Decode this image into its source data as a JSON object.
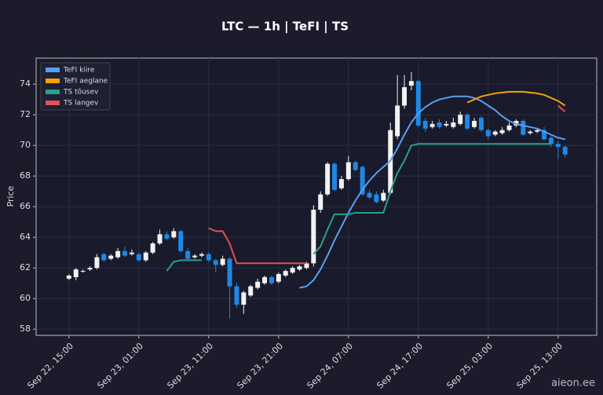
{
  "chart_data": {
    "type": "candlestick",
    "title": "LTC — 1h  |  TeFI  |  TS",
    "y_label": "Price",
    "watermark": "aieon.ee",
    "categories": [
      "Sep 22, 15:00",
      null,
      null,
      null,
      null,
      null,
      null,
      null,
      null,
      null,
      "Sep 23, 01:00",
      null,
      null,
      null,
      null,
      null,
      null,
      null,
      null,
      null,
      "Sep 23, 11:00",
      null,
      null,
      null,
      null,
      null,
      null,
      null,
      null,
      null,
      "Sep 23, 21:00",
      null,
      null,
      null,
      null,
      null,
      null,
      null,
      null,
      null,
      "Sep 24, 07:00",
      null,
      null,
      null,
      null,
      null,
      null,
      null,
      null,
      null,
      "Sep 24, 17:00",
      null,
      null,
      null,
      null,
      null,
      null,
      null,
      null,
      null,
      "Sep 25, 03:00",
      null,
      null,
      null,
      null,
      null,
      null,
      null,
      null,
      null,
      "Sep 25, 13:00",
      null
    ],
    "open": [
      61.3,
      61.4,
      61.8,
      61.9,
      62.0,
      62.9,
      62.6,
      62.7,
      63.1,
      62.9,
      62.9,
      62.5,
      63.0,
      63.6,
      64.2,
      64.0,
      64.4,
      63.1,
      62.7,
      62.8,
      62.9,
      62.5,
      62.2,
      62.6,
      60.8,
      59.6,
      60.2,
      60.7,
      61.0,
      61.4,
      61.1,
      61.5,
      61.7,
      61.9,
      62.0,
      62.3,
      65.8,
      66.8,
      68.8,
      67.2,
      67.8,
      68.9,
      68.6,
      66.9,
      66.8,
      66.4,
      66.9,
      70.6,
      72.6,
      73.9,
      74.2,
      71.6,
      71.2,
      71.5,
      71.3,
      71.2,
      71.4,
      72.0,
      71.2,
      71.8,
      71.0,
      70.7,
      70.8,
      71.0,
      71.3,
      71.6,
      70.8,
      70.9,
      71.0,
      70.5,
      70.1,
      69.9
    ],
    "high": [
      61.6,
      62.0,
      61.9,
      62.1,
      62.9,
      63.0,
      62.9,
      63.3,
      63.4,
      63.2,
      63.0,
      63.1,
      63.7,
      64.5,
      64.4,
      64.6,
      64.5,
      63.3,
      62.9,
      63.0,
      63.0,
      62.6,
      62.8,
      62.7,
      61.0,
      60.5,
      60.9,
      61.3,
      61.5,
      61.5,
      61.7,
      61.9,
      62.1,
      62.2,
      62.4,
      66.1,
      67.0,
      68.9,
      68.9,
      68.0,
      69.3,
      69.0,
      68.7,
      67.1,
      67.0,
      67.1,
      71.5,
      74.6,
      74.6,
      74.8,
      74.3,
      71.8,
      71.6,
      71.7,
      71.6,
      71.8,
      72.2,
      72.1,
      71.8,
      71.9,
      71.1,
      71.0,
      71.2,
      71.5,
      71.7,
      71.7,
      71.0,
      71.1,
      71.2,
      70.6,
      70.3,
      70.0
    ],
    "low": [
      61.2,
      61.2,
      61.7,
      61.8,
      61.9,
      62.4,
      62.5,
      62.6,
      62.7,
      62.8,
      62.4,
      62.4,
      62.9,
      63.5,
      63.8,
      63.9,
      63.0,
      62.5,
      62.6,
      62.7,
      62.4,
      61.7,
      62.1,
      58.7,
      59.4,
      59.0,
      60.1,
      60.6,
      60.9,
      60.9,
      61.0,
      61.4,
      61.6,
      61.8,
      61.9,
      62.1,
      65.6,
      66.7,
      67.0,
      67.1,
      67.7,
      68.3,
      66.7,
      66.5,
      66.2,
      66.3,
      66.8,
      70.4,
      72.4,
      73.6,
      71.2,
      70.9,
      71.1,
      71.1,
      71.2,
      71.1,
      71.3,
      71.0,
      71.1,
      70.9,
      70.4,
      70.6,
      70.7,
      70.9,
      71.2,
      70.6,
      70.7,
      70.8,
      70.3,
      69.9,
      69.1,
      69.2
    ],
    "close": [
      61.5,
      61.9,
      61.8,
      62.0,
      62.7,
      62.5,
      62.8,
      63.1,
      62.8,
      63.0,
      62.5,
      63.0,
      63.6,
      64.2,
      63.9,
      64.4,
      63.1,
      62.6,
      62.8,
      62.9,
      62.5,
      62.2,
      62.6,
      60.8,
      59.6,
      60.4,
      60.8,
      61.1,
      61.4,
      61.0,
      61.6,
      61.8,
      62.0,
      62.1,
      62.3,
      65.8,
      66.8,
      68.8,
      67.1,
      67.8,
      68.9,
      68.4,
      66.8,
      66.6,
      66.3,
      66.9,
      71.0,
      72.6,
      73.8,
      74.2,
      71.3,
      71.1,
      71.4,
      71.2,
      71.4,
      71.5,
      72.0,
      71.1,
      71.6,
      71.0,
      70.6,
      70.9,
      71.0,
      71.3,
      71.6,
      70.7,
      70.9,
      71.0,
      70.4,
      70.1,
      69.9,
      69.4
    ],
    "up_color": "#f2f2f2",
    "down_color": "#1e88e5",
    "series": [
      {
        "name": "TeFI kiire",
        "color": "#5b9ff0",
        "values": [
          null,
          null,
          null,
          null,
          null,
          null,
          null,
          null,
          null,
          null,
          null,
          null,
          null,
          null,
          null,
          null,
          null,
          null,
          null,
          null,
          null,
          null,
          null,
          null,
          null,
          null,
          null,
          null,
          null,
          null,
          null,
          null,
          null,
          60.7,
          60.8,
          61.2,
          61.9,
          62.8,
          63.8,
          64.7,
          65.6,
          66.4,
          67.1,
          67.7,
          68.2,
          68.6,
          69.0,
          69.8,
          70.7,
          71.5,
          72.1,
          72.5,
          72.8,
          73.0,
          73.1,
          73.2,
          73.2,
          73.2,
          73.1,
          72.9,
          72.6,
          72.3,
          71.9,
          71.6,
          71.4,
          71.3,
          71.2,
          71.1,
          70.9,
          70.7,
          70.5,
          70.4
        ]
      },
      {
        "name": "TeFI aeglane",
        "color": "#f0a30a",
        "values": [
          null,
          null,
          null,
          null,
          null,
          null,
          null,
          null,
          null,
          null,
          null,
          null,
          null,
          null,
          null,
          null,
          null,
          null,
          null,
          null,
          null,
          null,
          null,
          null,
          null,
          null,
          null,
          null,
          null,
          null,
          null,
          null,
          null,
          null,
          null,
          null,
          null,
          null,
          null,
          null,
          null,
          null,
          null,
          null,
          null,
          null,
          null,
          null,
          null,
          null,
          null,
          null,
          null,
          null,
          null,
          null,
          null,
          72.8,
          73.0,
          73.2,
          73.3,
          73.4,
          73.45,
          73.5,
          73.5,
          73.5,
          73.45,
          73.4,
          73.3,
          73.1,
          72.9,
          72.6
        ]
      },
      {
        "name": "TS tõusev",
        "color": "#26a18a",
        "values": [
          null,
          null,
          null,
          null,
          null,
          null,
          null,
          null,
          null,
          null,
          null,
          null,
          null,
          null,
          61.8,
          62.4,
          62.5,
          62.5,
          62.5,
          62.5,
          null,
          null,
          null,
          null,
          null,
          null,
          null,
          null,
          null,
          null,
          null,
          null,
          null,
          null,
          null,
          62.9,
          63.4,
          64.5,
          65.5,
          65.5,
          65.5,
          65.6,
          65.6,
          65.6,
          65.6,
          65.6,
          67.0,
          68.2,
          69.0,
          70.0,
          70.1,
          70.1,
          70.1,
          70.1,
          70.1,
          70.1,
          70.1,
          70.1,
          70.1,
          70.1,
          70.1,
          70.1,
          70.1,
          70.1,
          70.1,
          70.1,
          70.1,
          70.1,
          70.1,
          70.1,
          null,
          null
        ]
      },
      {
        "name": "TS langev",
        "color": "#e05252",
        "values": [
          null,
          null,
          null,
          null,
          null,
          null,
          null,
          null,
          null,
          null,
          null,
          null,
          null,
          null,
          null,
          null,
          null,
          null,
          null,
          null,
          64.6,
          64.4,
          64.4,
          63.6,
          62.3,
          62.3,
          62.3,
          62.3,
          62.3,
          62.3,
          62.3,
          62.3,
          62.3,
          62.3,
          62.3,
          null,
          null,
          null,
          null,
          null,
          null,
          null,
          null,
          null,
          null,
          null,
          null,
          null,
          null,
          null,
          null,
          null,
          null,
          null,
          null,
          null,
          null,
          null,
          null,
          null,
          null,
          null,
          null,
          null,
          null,
          null,
          null,
          null,
          null,
          null,
          72.6,
          72.2
        ]
      }
    ],
    "ylim": [
      57.6,
      75.7
    ],
    "yticks": [
      58,
      60,
      62,
      64,
      66,
      68,
      70,
      72,
      74
    ],
    "grid": true,
    "legend": "upper left"
  }
}
